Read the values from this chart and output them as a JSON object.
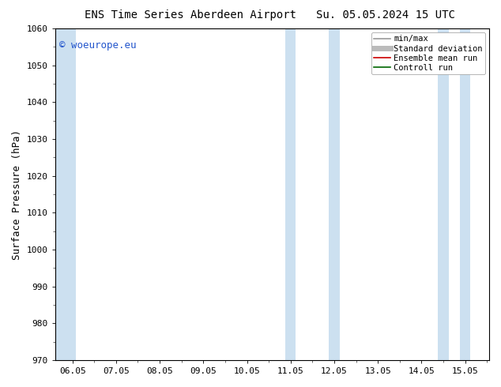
{
  "title_left": "ENS Time Series Aberdeen Airport",
  "title_right": "Su. 05.05.2024 15 UTC",
  "ylabel": "Surface Pressure (hPa)",
  "ylim": [
    970,
    1060
  ],
  "yticks": [
    970,
    980,
    990,
    1000,
    1010,
    1020,
    1030,
    1040,
    1050,
    1060
  ],
  "x_tick_labels": [
    "06.05",
    "07.05",
    "08.05",
    "09.05",
    "10.05",
    "11.05",
    "12.05",
    "13.05",
    "14.05",
    "15.05"
  ],
  "x_tick_positions": [
    0,
    1,
    2,
    3,
    4,
    5,
    6,
    7,
    8,
    9
  ],
  "xlim": [
    -0.4,
    9.55
  ],
  "shaded_bands": [
    {
      "xmin": -0.38,
      "xmax": 0.08
    },
    {
      "xmin": 4.88,
      "xmax": 5.12
    },
    {
      "xmin": 5.88,
      "xmax": 6.12
    },
    {
      "xmin": 8.38,
      "xmax": 8.62
    },
    {
      "xmin": 8.88,
      "xmax": 9.12
    }
  ],
  "shaded_color": "#cce0f0",
  "watermark_text": "© woeurope.eu",
  "watermark_color": "#2255cc",
  "legend_items": [
    {
      "label": "min/max",
      "color": "#999999",
      "lw": 1.2,
      "style": "solid"
    },
    {
      "label": "Standard deviation",
      "color": "#bbbbbb",
      "lw": 5,
      "style": "solid"
    },
    {
      "label": "Ensemble mean run",
      "color": "#cc0000",
      "lw": 1.2,
      "style": "solid"
    },
    {
      "label": "Controll run",
      "color": "#006600",
      "lw": 1.2,
      "style": "solid"
    }
  ],
  "bg_color": "#ffffff",
  "title_fontsize": 10,
  "tick_fontsize": 8,
  "ylabel_fontsize": 9,
  "watermark_fontsize": 9,
  "legend_fontsize": 7.5
}
